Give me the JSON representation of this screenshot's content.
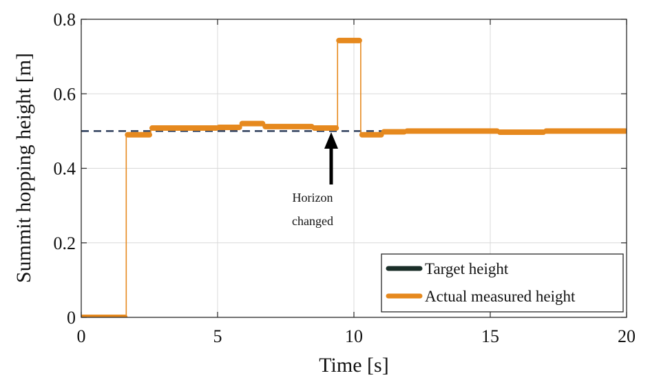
{
  "chart_data": {
    "type": "line",
    "title": "",
    "xlabel": "Time [s]",
    "ylabel": "Summit hopping height [m]",
    "xlim": [
      0,
      20
    ],
    "ylim": [
      0,
      0.8
    ],
    "xticks": [
      0,
      5,
      10,
      15,
      20
    ],
    "yticks": [
      0,
      0.2,
      0.4,
      0.6,
      0.8
    ],
    "xtick_labels": [
      "0",
      "5",
      "10",
      "15",
      "20"
    ],
    "ytick_labels": [
      "0",
      "0.2",
      "0.4",
      "0.6",
      "0.8"
    ],
    "grid": true,
    "legend_position": "bottom-right",
    "series": [
      {
        "name": "Target height",
        "style": "dashed",
        "color": "#2e3f5c",
        "legend_color": "#1a2e28",
        "x": [
          0,
          20
        ],
        "y": [
          0.5,
          0.5
        ]
      },
      {
        "name": "Actual measured height",
        "style": "step-thick",
        "color": "#e6891e",
        "segments": [
          {
            "x0": 0.0,
            "x1": 1.65,
            "y": 0.0
          },
          {
            "x0": 1.65,
            "x1": 2.55,
            "y": 0.49
          },
          {
            "x0": 2.55,
            "x1": 5.0,
            "y": 0.508
          },
          {
            "x0": 5.0,
            "x1": 5.85,
            "y": 0.51
          },
          {
            "x0": 5.85,
            "x1": 6.7,
            "y": 0.52
          },
          {
            "x0": 6.7,
            "x1": 8.5,
            "y": 0.512
          },
          {
            "x0": 8.5,
            "x1": 9.4,
            "y": 0.508
          },
          {
            "x0": 9.4,
            "x1": 10.25,
            "y": 0.743
          },
          {
            "x0": 10.25,
            "x1": 11.05,
            "y": 0.49
          },
          {
            "x0": 11.05,
            "x1": 11.9,
            "y": 0.498
          },
          {
            "x0": 11.9,
            "x1": 15.3,
            "y": 0.5
          },
          {
            "x0": 15.3,
            "x1": 17.0,
            "y": 0.497
          },
          {
            "x0": 17.0,
            "x1": 20.0,
            "y": 0.5
          }
        ]
      }
    ],
    "annotations": [
      {
        "text_lines": [
          "Horizon",
          "changed"
        ],
        "arrow_target_x": 9.2,
        "arrow_target_y": 0.5
      }
    ]
  }
}
